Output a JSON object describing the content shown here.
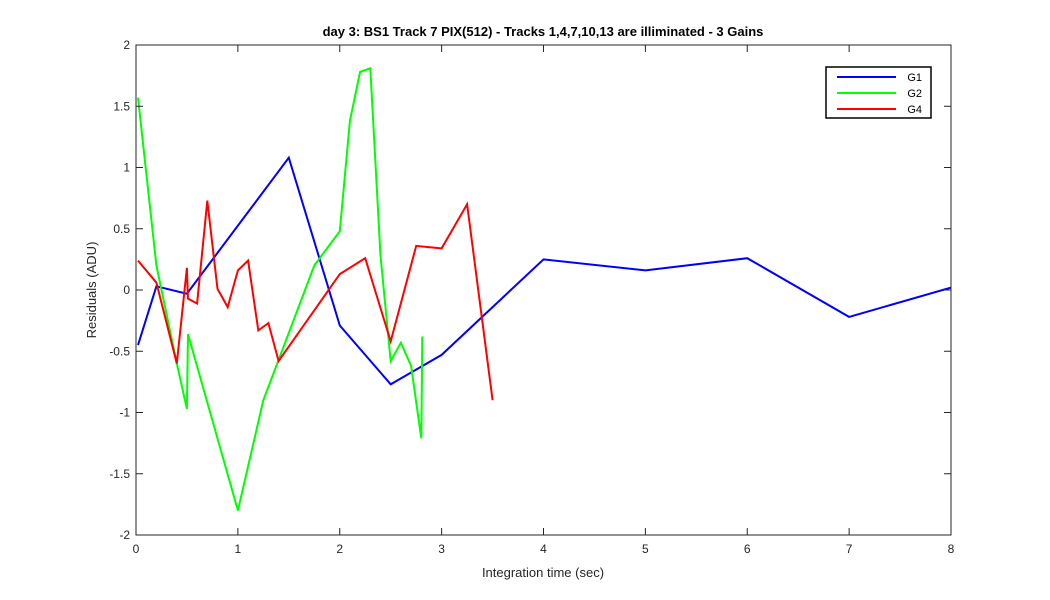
{
  "chart_data": {
    "type": "line",
    "title": "day 3: BS1  Track 7 PIX(512) - Tracks 1,4,7,10,13 are illiminated - 3 Gains",
    "xlabel": "Integration time (sec)",
    "ylabel": "Residuals (ADU)",
    "xlim": [
      0,
      8
    ],
    "ylim": [
      -2,
      2
    ],
    "xticks": [
      0,
      1,
      2,
      3,
      4,
      5,
      6,
      7,
      8
    ],
    "yticks": [
      -2,
      -1.5,
      -1,
      -0.5,
      0,
      0.5,
      1,
      1.5,
      2
    ],
    "xtick_labels": [
      "0",
      "1",
      "2",
      "3",
      "4",
      "5",
      "6",
      "7",
      "8"
    ],
    "ytick_labels": [
      "-2",
      "-1.5",
      "-1",
      "-0.5",
      "0",
      "0.5",
      "1",
      "1.5",
      "2"
    ],
    "grid": false,
    "legend_position": "top-right",
    "series": [
      {
        "name": "G1",
        "color": "#0000ff",
        "x": [
          0.02,
          0.2,
          0.5,
          1.5,
          2.0,
          2.5,
          3.0,
          4.0,
          5.0,
          6.0,
          7.0,
          8.0
        ],
        "y": [
          -0.45,
          0.03,
          -0.03,
          1.08,
          -0.29,
          -0.77,
          -0.53,
          0.25,
          0.16,
          0.26,
          -0.22,
          0.02
        ]
      },
      {
        "name": "G2",
        "color": "#00ff00",
        "x": [
          0.02,
          0.2,
          0.4,
          0.5,
          0.51,
          1.0,
          1.25,
          1.75,
          2.0,
          2.1,
          2.2,
          2.3,
          2.4,
          2.5,
          2.6,
          2.7,
          2.8,
          2.81
        ],
        "y": [
          1.57,
          0.2,
          -0.6,
          -0.97,
          -0.36,
          -1.8,
          -0.9,
          0.2,
          0.48,
          1.38,
          1.78,
          1.81,
          0.28,
          -0.58,
          -0.43,
          -0.62,
          -1.21,
          -0.38
        ]
      },
      {
        "name": "G4",
        "color": "#ff0000",
        "x": [
          0.02,
          0.2,
          0.4,
          0.5,
          0.51,
          0.6,
          0.7,
          0.8,
          0.9,
          1.0,
          1.1,
          1.2,
          1.3,
          1.4,
          2.0,
          2.25,
          2.5,
          2.75,
          3.0,
          3.25,
          3.5
        ],
        "y": [
          0.24,
          0.06,
          -0.6,
          0.18,
          -0.07,
          -0.11,
          0.73,
          0.01,
          -0.14,
          0.16,
          0.24,
          -0.33,
          -0.27,
          -0.58,
          0.13,
          0.26,
          -0.42,
          0.36,
          0.34,
          0.7,
          -0.9
        ]
      }
    ]
  }
}
